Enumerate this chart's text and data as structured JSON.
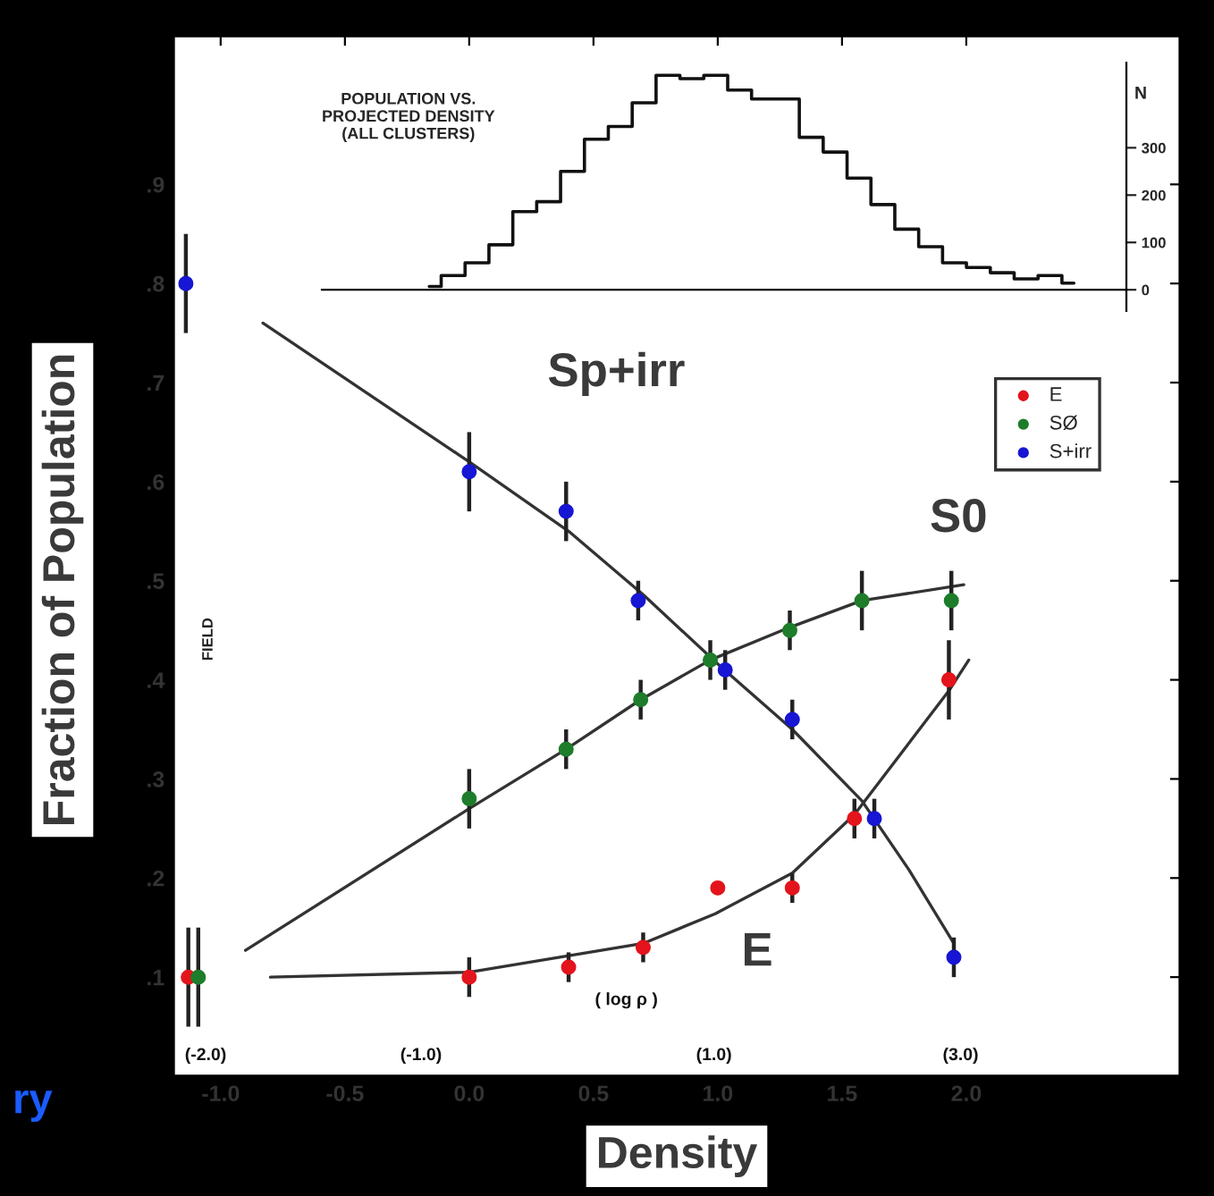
{
  "chart_data": [
    {
      "type": "scatter",
      "xlabel": "Density",
      "ylabel": "Fraction of Population",
      "xlim": [
        -1.19,
        2.86
      ],
      "ylim": [
        0,
        1.05
      ],
      "xticks": [
        {
          "value": -1.0,
          "label": "-1.0"
        },
        {
          "value": -0.5,
          "label": "-0.5"
        },
        {
          "value": 0.0,
          "label": "0.0"
        },
        {
          "value": 0.5,
          "label": "0.5"
        },
        {
          "value": 1.0,
          "label": "1.0"
        },
        {
          "value": 1.5,
          "label": "1.5"
        },
        {
          "value": 2.0,
          "label": "2.0"
        }
      ],
      "yticks": [
        {
          "value": 0.1,
          "label": ".1"
        },
        {
          "value": 0.2,
          "label": ".2"
        },
        {
          "value": 0.3,
          "label": ".3"
        },
        {
          "value": 0.4,
          "label": ".4"
        },
        {
          "value": 0.5,
          "label": ".5"
        },
        {
          "value": 0.6,
          "label": ".6"
        },
        {
          "value": 0.7,
          "label": ".7"
        },
        {
          "value": 0.8,
          "label": ".8"
        },
        {
          "value": 0.9,
          "label": ".9"
        }
      ],
      "grid": false,
      "legend": "top right",
      "marker": "circle",
      "series": [
        {
          "name": "E",
          "color": "#e3141c",
          "x": [
            -1.13,
            0.0,
            0.4,
            0.7,
            1.0,
            1.3,
            1.55,
            1.93
          ],
          "values": [
            0.1,
            0.1,
            0.11,
            0.13,
            0.19,
            0.19,
            0.26,
            0.4
          ],
          "errors": [
            0.05,
            0.02,
            0.015,
            0.015,
            null,
            0.015,
            0.02,
            0.04
          ]
        },
        {
          "name": "SØ",
          "color": "#1e7d2a",
          "x": [
            -1.09,
            0.0,
            0.39,
            0.69,
            0.97,
            1.29,
            1.58,
            1.94
          ],
          "values": [
            0.1,
            0.28,
            0.33,
            0.38,
            0.42,
            0.45,
            0.48,
            0.48
          ],
          "errors": [
            0.05,
            0.03,
            0.02,
            0.02,
            0.02,
            0.02,
            0.03,
            0.03
          ]
        },
        {
          "name": "S+irr",
          "color": "#1616d4",
          "x": [
            -1.14,
            0.0,
            0.39,
            0.68,
            1.03,
            1.3,
            1.63,
            1.95
          ],
          "values": [
            0.8,
            0.61,
            0.57,
            0.48,
            0.41,
            0.36,
            0.26,
            0.12
          ],
          "errors": [
            0.05,
            0.04,
            0.03,
            0.02,
            0.02,
            0.02,
            0.02,
            0.02
          ]
        },
        {
          "type": "line",
          "marker": "none",
          "color": "#333333",
          "x": [
            -0.83,
            0.0,
            0.4,
            0.7,
            1.0,
            1.3,
            1.58,
            1.77,
            1.95
          ],
          "values": [
            0.76,
            0.62,
            0.55,
            0.486,
            0.416,
            0.35,
            0.278,
            0.208,
            0.134
          ]
        },
        {
          "type": "line",
          "marker": "none",
          "color": "#333333",
          "x": [
            -0.9,
            0.0,
            0.39,
            0.69,
            0.97,
            1.29,
            1.58,
            1.99
          ],
          "values": [
            0.127,
            0.27,
            0.33,
            0.38,
            0.42,
            0.453,
            0.48,
            0.496
          ]
        },
        {
          "type": "line",
          "marker": "none",
          "color": "#333333",
          "x": [
            -0.8,
            0.0,
            0.7,
            0.99,
            1.3,
            1.55,
            1.93,
            2.01
          ],
          "values": [
            0.1,
            0.105,
            0.134,
            0.164,
            0.205,
            0.264,
            0.389,
            0.42
          ]
        }
      ],
      "annotations": [
        "Sp+irr",
        "S0",
        "E",
        "FIELD",
        "ry",
        "( log ρ )",
        "(-2.0)",
        "(-1.0)",
        "(1.0)",
        "(3.0)"
      ]
    },
    {
      "type": "step",
      "title": "POPULATION VS.\nPROJECTED DENSITY\n(ALL CLUSTERS)",
      "ylabel": "N",
      "categories": [
        null,
        null,
        null,
        null,
        null,
        null,
        null,
        null,
        null,
        null,
        null,
        null,
        null,
        null,
        null,
        null,
        null,
        null,
        null,
        null,
        null,
        null,
        null,
        null,
        null,
        null,
        null,
        null
      ],
      "values": [
        7,
        30,
        57,
        95,
        165,
        186,
        250,
        318,
        345,
        395,
        453,
        446,
        453,
        422,
        403,
        403,
        322,
        291,
        236,
        180,
        128,
        91,
        57,
        47,
        36,
        23,
        30,
        14
      ],
      "ylim": [
        -45,
        480
      ],
      "yticks": [
        0,
        100,
        200,
        300
      ],
      "tick_labels": "y",
      "color": "#111111"
    }
  ]
}
